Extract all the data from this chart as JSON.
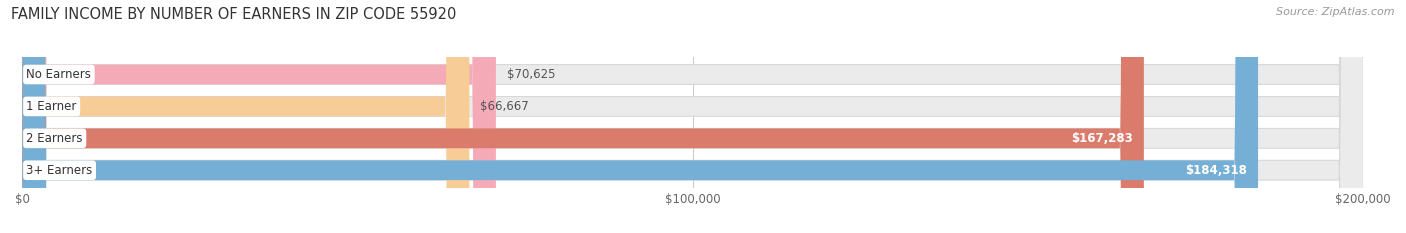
{
  "title": "FAMILY INCOME BY NUMBER OF EARNERS IN ZIP CODE 55920",
  "source": "Source: ZipAtlas.com",
  "categories": [
    "No Earners",
    "1 Earner",
    "2 Earners",
    "3+ Earners"
  ],
  "values": [
    70625,
    66667,
    167283,
    184318
  ],
  "bar_colors": [
    "#f5aab8",
    "#f7cc96",
    "#db7b6b",
    "#75afd6"
  ],
  "value_labels": [
    "$70,625",
    "$66,667",
    "$167,283",
    "$184,318"
  ],
  "value_inside": [
    false,
    false,
    true,
    true
  ],
  "xlim": [
    0,
    200000
  ],
  "xticks": [
    0,
    100000,
    200000
  ],
  "xtick_labels": [
    "$0",
    "$100,000",
    "$200,000"
  ],
  "background_color": "#ffffff",
  "bar_bg_color": "#ebebeb",
  "bar_bg_edge_color": "#d8d8d8",
  "title_fontsize": 10.5,
  "source_fontsize": 8,
  "bar_height": 0.62,
  "fig_width": 14.06,
  "fig_height": 2.33,
  "dpi": 100,
  "grid_color": "#cccccc"
}
